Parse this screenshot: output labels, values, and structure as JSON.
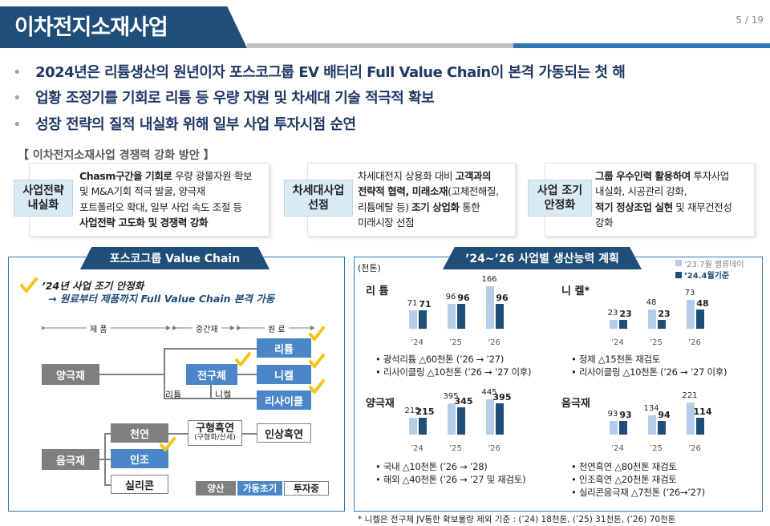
{
  "header": {
    "title": "이차전지소재사업",
    "page_number": "5 / 19"
  },
  "bullets": [
    "2024년은 리튬생산의 원년이자 포스코그룹 EV 배터리 Full Value Chain이 본격 가동되는 첫 해",
    "업황 조정기를 기회로 리튬 등 우량 자원 및 차세대 기술 적극적 확보",
    "성장 전략의 질적 내실화 위해 일부 사업 투자시점 순연"
  ],
  "strategy": {
    "section_title": "【 이차전지소재사업 경쟁력 강화 방안 】",
    "cards": [
      {
        "tag_line1": "사업전략",
        "tag_line2": "내실화",
        "desc": [
          "Chasm구간을 기회로 우량 광물자원 확보",
          "및 M&A기회 적극 발굴, 양극재",
          "포트폴리오 확대, 일부 사업 속도 조절 등",
          "사업전략 고도화 및 경쟁력 강화"
        ]
      },
      {
        "tag_line1": "차세대사업",
        "tag_line2": "선점",
        "desc": [
          "차세대전지 상용화 대비 고객과의",
          "전략적 협력, 미래소재(고체전해질,",
          "리튬메탈 등) 조기 상업화 통한",
          "미래시장 선점"
        ]
      },
      {
        "tag_line1": "사업 조기",
        "tag_line2": "안정화",
        "desc": [
          "그룹 우수인력 활용하여 투자사업",
          "내실화, 시공관리 강화,",
          "적기 정상조업 실현 및 재무건전성",
          "강화"
        ]
      }
    ]
  },
  "value_chain": {
    "title": "포스코그룹 Value Chain",
    "check_line1": "’24년 사업 조기 안정화",
    "check_line2": "→ 원료부터 제품까지 Full Value Chain 본격 가동",
    "col_product": "제    품",
    "col_intermediate": "중간재",
    "col_raw": "원    료",
    "nodes": {
      "cathode": "양극재",
      "precursor": "전구체",
      "lithium": "리튬",
      "nickel": "니켈",
      "recycling": "리사이클",
      "anode": "음극재",
      "natural": "천연",
      "artificial": "인조",
      "silicon": "실리콘",
      "spherical": "구형흑연",
      "spherical_sub": "(구형화/산세)",
      "flake": "인상흑연"
    },
    "link_lithium": "리튬",
    "link_nickel": "니켈",
    "legend": {
      "mass": "양산",
      "early": "가동초기",
      "invest": "투자중"
    }
  },
  "capacity": {
    "title": "’24~’26 사업별 생산능력 계획",
    "unit": "(천톤)",
    "legend_old": "’23.7월 밸류데이",
    "legend_new": "’24.4월기준",
    "colors": {
      "old": "#b4cde8",
      "new": "#1f4e79"
    },
    "years": [
      "’24",
      "’25",
      "’26"
    ],
    "segments": {
      "lithium": {
        "title": "리 튬",
        "old": [
          71,
          96,
          166
        ],
        "new": [
          71,
          96,
          96
        ],
        "notes": [
          "• 광석리튬 △60천톤 (’26 → ’27)",
          "• 리사이클링 △10천톤 (’26 → ’27 이후)"
        ]
      },
      "nickel": {
        "title": "니 켈*",
        "old": [
          23,
          48,
          73
        ],
        "new": [
          23,
          23,
          48
        ],
        "notes": [
          "• 정제 △15천톤 재검토",
          "• 리사이클링 △10천톤 (’26 → ’27 이후)"
        ]
      },
      "cathode": {
        "title": "양극재",
        "old": [
          215,
          395,
          445
        ],
        "new": [
          215,
          345,
          395
        ],
        "notes": [
          "• 국내 △10천톤 (’26 → ’28)",
          "• 해외 △40천톤 (’26 → ’27 및 재검토)"
        ]
      },
      "anode": {
        "title": "음극재",
        "old": [
          93,
          134,
          221
        ],
        "new": [
          93,
          94,
          114
        ],
        "notes": [
          "• 천연흑연 △80천톤 재검토",
          "• 인조흑연 △20천톤 재검토",
          "• 실리콘음극재 △7천톤 (’26→’27)"
        ]
      }
    },
    "footnote": "* 니켈은 전구체 JV통한 확보물량 제외 기준 : (’24) 18천톤, (’25) 31천톤, (’26) 70천톤"
  }
}
